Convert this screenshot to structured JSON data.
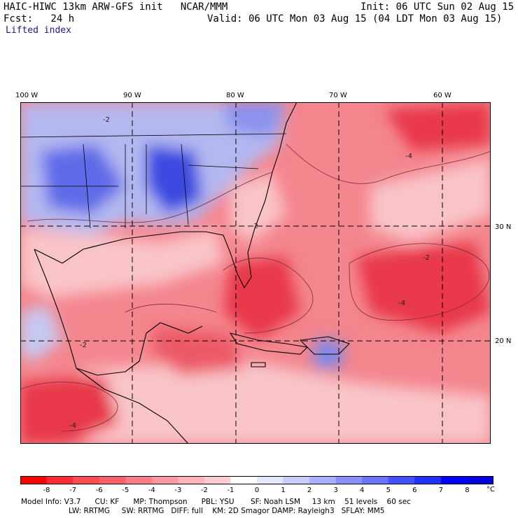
{
  "header": {
    "title": "HAIC-HIWC 13km ARW-GFS init   NCAR/MMM",
    "init": "Init: 06 UTC Sun 02 Aug 15",
    "fcst": "Fcst:   24 h",
    "valid": "Valid: 06 UTC Mon 03 Aug 15 (04 LDT Mon 03 Aug 15)",
    "field": "Lifted index"
  },
  "map": {
    "lon_labels": [
      "100 W",
      "90 W",
      "80 W",
      "70 W",
      "60 W"
    ],
    "lat_labels": [
      "30 N",
      "20 N"
    ],
    "contour_labels": [
      "-2",
      "-4"
    ],
    "colors": {
      "strong_negative": "#e8384a",
      "negative": "#f4868e",
      "weak_negative": "#f9c4c8",
      "neutral": "#ffffff",
      "positive": "#b4b8f0",
      "strong_positive": "#3a48e0"
    }
  },
  "colorbar": {
    "ticks": [
      "-8",
      "-7",
      "-6",
      "-5",
      "-4",
      "-3",
      "-2",
      "-1",
      "0",
      "1",
      "2",
      "3",
      "4",
      "5",
      "6",
      "7",
      "8"
    ],
    "unit": "°C",
    "colors": [
      "#ff0000",
      "#ff2a33",
      "#ff4b52",
      "#ff5f68",
      "#ff7c85",
      "#ff97a0",
      "#ffb3bb",
      "#ffcdd3",
      "#ffffff",
      "#e5e7ff",
      "#c9ccff",
      "#aab0ff",
      "#8890ff",
      "#6a74ff",
      "#4450ff",
      "#2030ff",
      "#0000ff",
      "#0000e0"
    ]
  },
  "footer": {
    "line1": "Model Info: V3.7      CU: KF      MP: Thompson      PBL: YSU       SF: Noah LSM     13 km    51 levels    60 sec",
    "line2": "LW: RRTMG     SW: RRTMG   DIFF: full    KM: 2D Smagor DAMP: Rayleigh3   SFLAY: MM5"
  }
}
